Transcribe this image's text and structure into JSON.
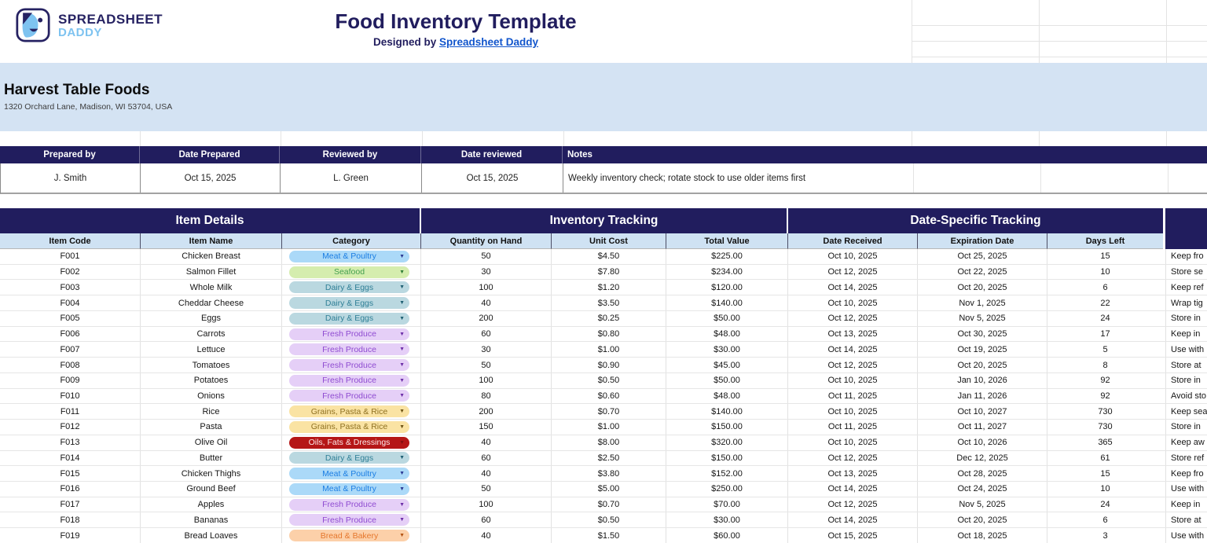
{
  "colors": {
    "navy": "#211d5e",
    "band_blue": "#d4e3f3",
    "header_blue": "#cfe2f3",
    "link_blue": "#1155cc",
    "brand_navy": "#262262",
    "brand_light_blue": "#7ec3f0"
  },
  "brand": {
    "line1": "SPREADSHEET",
    "line2": "DADDY"
  },
  "header": {
    "title": "Food Inventory Template",
    "byline_prefix": "Designed by ",
    "byline_link": "Spreadsheet Daddy"
  },
  "company": {
    "name": "Harvest Table Foods",
    "address": "1320 Orchard Lane, Madison, WI 53704, USA"
  },
  "meta_table": {
    "headers": [
      "Prepared by",
      "Date Prepared",
      "Reviewed by",
      "Date reviewed",
      "Notes"
    ],
    "values": [
      "J. Smith",
      "Oct 15, 2025",
      "L. Green",
      "Oct 15, 2025",
      "Weekly inventory check; rotate stock to use older items first"
    ]
  },
  "inventory": {
    "sections": [
      "Item Details",
      "Inventory Tracking",
      "Date-Specific Tracking"
    ],
    "columns": [
      "Item Code",
      "Item Name",
      "Category",
      "Quantity on Hand",
      "Unit Cost",
      "Total Value",
      "Date Received",
      "Expiration Date",
      "Days Left"
    ],
    "categories": {
      "Meat & Poultry": {
        "bg": "#abd9f8",
        "fg": "#1c7ee3",
        "arrow": "#2b3a94"
      },
      "Seafood": {
        "bg": "#d5edae",
        "fg": "#43a04f",
        "arrow": "#2f7d36"
      },
      "Dairy & Eggs": {
        "bg": "#bad8e0",
        "fg": "#2f7f96",
        "arrow": "#1e5f72"
      },
      "Fresh Produce": {
        "bg": "#e5cff7",
        "fg": "#8f4bd1",
        "arrow": "#6d2fa8"
      },
      "Grains, Pasta & Rice": {
        "bg": "#fae3a3",
        "fg": "#8f7121",
        "arrow": "#6e5414"
      },
      "Oils, Fats & Dressings": {
        "bg": "#b51617",
        "fg": "#fdeaea",
        "arrow": "#840f10"
      },
      "Bread & Bakery": {
        "bg": "#fcd0a9",
        "fg": "#e5772d",
        "arrow": "#b35312"
      }
    },
    "rows": [
      {
        "code": "F001",
        "name": "Chicken Breast",
        "category": "Meat & Poultry",
        "qty": "50",
        "unit_cost": "$4.50",
        "total_value": "$225.00",
        "date_received": "Oct 10, 2025",
        "expiration_date": "Oct 25, 2025",
        "days_left": "15",
        "note_fragment": "Keep fro"
      },
      {
        "code": "F002",
        "name": "Salmon Fillet",
        "category": "Seafood",
        "qty": "30",
        "unit_cost": "$7.80",
        "total_value": "$234.00",
        "date_received": "Oct 12, 2025",
        "expiration_date": "Oct 22, 2025",
        "days_left": "10",
        "note_fragment": "Store se"
      },
      {
        "code": "F003",
        "name": "Whole Milk",
        "category": "Dairy & Eggs",
        "qty": "100",
        "unit_cost": "$1.20",
        "total_value": "$120.00",
        "date_received": "Oct 14, 2025",
        "expiration_date": "Oct 20, 2025",
        "days_left": "6",
        "note_fragment": "Keep ref"
      },
      {
        "code": "F004",
        "name": "Cheddar Cheese",
        "category": "Dairy & Eggs",
        "qty": "40",
        "unit_cost": "$3.50",
        "total_value": "$140.00",
        "date_received": "Oct 10, 2025",
        "expiration_date": "Nov 1, 2025",
        "days_left": "22",
        "note_fragment": "Wrap tig"
      },
      {
        "code": "F005",
        "name": "Eggs",
        "category": "Dairy & Eggs",
        "qty": "200",
        "unit_cost": "$0.25",
        "total_value": "$50.00",
        "date_received": "Oct 12, 2025",
        "expiration_date": "Nov 5, 2025",
        "days_left": "24",
        "note_fragment": "Store in"
      },
      {
        "code": "F006",
        "name": "Carrots",
        "category": "Fresh Produce",
        "qty": "60",
        "unit_cost": "$0.80",
        "total_value": "$48.00",
        "date_received": "Oct 13, 2025",
        "expiration_date": "Oct 30, 2025",
        "days_left": "17",
        "note_fragment": "Keep in"
      },
      {
        "code": "F007",
        "name": "Lettuce",
        "category": "Fresh Produce",
        "qty": "30",
        "unit_cost": "$1.00",
        "total_value": "$30.00",
        "date_received": "Oct 14, 2025",
        "expiration_date": "Oct 19, 2025",
        "days_left": "5",
        "note_fragment": "Use with"
      },
      {
        "code": "F008",
        "name": "Tomatoes",
        "category": "Fresh Produce",
        "qty": "50",
        "unit_cost": "$0.90",
        "total_value": "$45.00",
        "date_received": "Oct 12, 2025",
        "expiration_date": "Oct 20, 2025",
        "days_left": "8",
        "note_fragment": "Store at"
      },
      {
        "code": "F009",
        "name": "Potatoes",
        "category": "Fresh Produce",
        "qty": "100",
        "unit_cost": "$0.50",
        "total_value": "$50.00",
        "date_received": "Oct 10, 2025",
        "expiration_date": "Jan 10, 2026",
        "days_left": "92",
        "note_fragment": "Store in"
      },
      {
        "code": "F010",
        "name": "Onions",
        "category": "Fresh Produce",
        "qty": "80",
        "unit_cost": "$0.60",
        "total_value": "$48.00",
        "date_received": "Oct 11, 2025",
        "expiration_date": "Jan 11, 2026",
        "days_left": "92",
        "note_fragment": "Avoid sto"
      },
      {
        "code": "F011",
        "name": "Rice",
        "category": "Grains, Pasta & Rice",
        "qty": "200",
        "unit_cost": "$0.70",
        "total_value": "$140.00",
        "date_received": "Oct 10, 2025",
        "expiration_date": "Oct 10, 2027",
        "days_left": "730",
        "note_fragment": "Keep sea"
      },
      {
        "code": "F012",
        "name": "Pasta",
        "category": "Grains, Pasta & Rice",
        "qty": "150",
        "unit_cost": "$1.00",
        "total_value": "$150.00",
        "date_received": "Oct 11, 2025",
        "expiration_date": "Oct 11, 2027",
        "days_left": "730",
        "note_fragment": "Store in"
      },
      {
        "code": "F013",
        "name": "Olive Oil",
        "category": "Oils, Fats & Dressings",
        "qty": "40",
        "unit_cost": "$8.00",
        "total_value": "$320.00",
        "date_received": "Oct 10, 2025",
        "expiration_date": "Oct 10, 2026",
        "days_left": "365",
        "note_fragment": "Keep aw"
      },
      {
        "code": "F014",
        "name": "Butter",
        "category": "Dairy & Eggs",
        "qty": "60",
        "unit_cost": "$2.50",
        "total_value": "$150.00",
        "date_received": "Oct 12, 2025",
        "expiration_date": "Dec 12, 2025",
        "days_left": "61",
        "note_fragment": "Store ref"
      },
      {
        "code": "F015",
        "name": "Chicken Thighs",
        "category": "Meat & Poultry",
        "qty": "40",
        "unit_cost": "$3.80",
        "total_value": "$152.00",
        "date_received": "Oct 13, 2025",
        "expiration_date": "Oct 28, 2025",
        "days_left": "15",
        "note_fragment": "Keep fro"
      },
      {
        "code": "F016",
        "name": "Ground Beef",
        "category": "Meat & Poultry",
        "qty": "50",
        "unit_cost": "$5.00",
        "total_value": "$250.00",
        "date_received": "Oct 14, 2025",
        "expiration_date": "Oct 24, 2025",
        "days_left": "10",
        "note_fragment": "Use with"
      },
      {
        "code": "F017",
        "name": "Apples",
        "category": "Fresh Produce",
        "qty": "100",
        "unit_cost": "$0.70",
        "total_value": "$70.00",
        "date_received": "Oct 12, 2025",
        "expiration_date": "Nov 5, 2025",
        "days_left": "24",
        "note_fragment": "Keep in"
      },
      {
        "code": "F018",
        "name": "Bananas",
        "category": "Fresh Produce",
        "qty": "60",
        "unit_cost": "$0.50",
        "total_value": "$30.00",
        "date_received": "Oct 14, 2025",
        "expiration_date": "Oct 20, 2025",
        "days_left": "6",
        "note_fragment": "Store at"
      },
      {
        "code": "F019",
        "name": "Bread Loaves",
        "category": "Bread & Bakery",
        "qty": "40",
        "unit_cost": "$1.50",
        "total_value": "$60.00",
        "date_received": "Oct 15, 2025",
        "expiration_date": "Oct 18, 2025",
        "days_left": "3",
        "note_fragment": "Use with"
      }
    ]
  }
}
